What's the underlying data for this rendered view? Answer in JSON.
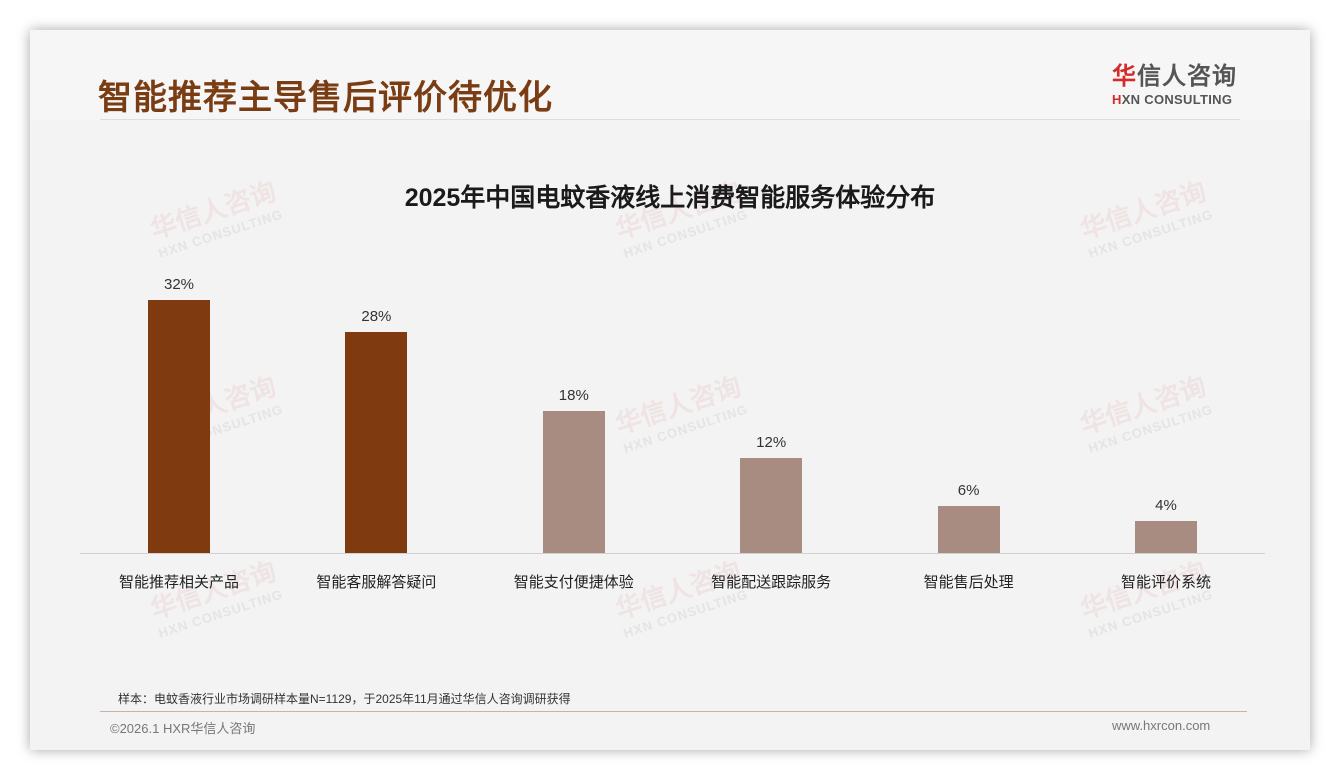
{
  "page": {
    "title": "智能推荐主导售后评价待优化",
    "logo": {
      "cn_first": "华",
      "cn_rest": "信人咨询",
      "en_first": "H",
      "en_rest": "XN CONSULTING"
    },
    "watermark": {
      "cn": "华信人咨询",
      "en": "HXN CONSULTING"
    },
    "note": "样本：电蚊香液行业市场调研样本量N=1129，于2025年11月通过华信人咨询调研获得",
    "copyright": "©2026.1 HXR华信人咨询",
    "website": "www.hxrcon.com"
  },
  "colors": {
    "primary_bar": "#7f3b0f",
    "secondary_bar": "#a88c82",
    "title": "#7a3c12"
  },
  "chart_data": {
    "type": "bar",
    "title": "2025年中国电蚊香液线上消费智能服务体验分布",
    "categories": [
      "智能推荐相关产品",
      "智能客服解答疑问",
      "智能支付便捷体验",
      "智能配送跟踪服务",
      "智能售后处理",
      "智能评价系统"
    ],
    "values": [
      32,
      28,
      18,
      12,
      6,
      4
    ],
    "value_labels": [
      "32%",
      "28%",
      "18%",
      "12%",
      "6%",
      "4%"
    ],
    "highlight": [
      true,
      true,
      false,
      false,
      false,
      false
    ],
    "xlabel": "",
    "ylabel": "",
    "ylim": [
      0,
      32
    ],
    "grid": false,
    "legend": "none"
  }
}
